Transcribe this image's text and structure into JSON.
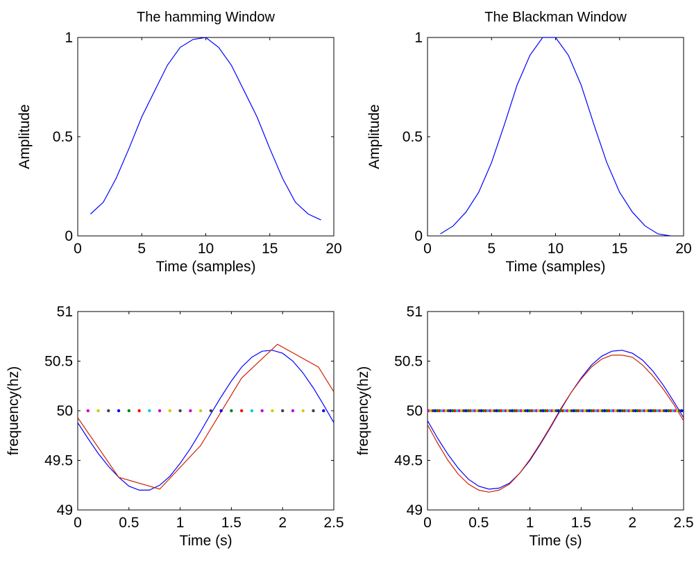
{
  "chart_data": [
    {
      "type": "line",
      "title": "The hamming Window",
      "xlabel": "Time (samples)",
      "ylabel": "Amplitude",
      "xlim": [
        0,
        20
      ],
      "ylim": [
        0,
        1
      ],
      "xticks": [
        0,
        5,
        10,
        15,
        20
      ],
      "yticks": [
        0,
        0.5,
        1
      ],
      "ytick_labels": [
        "0",
        "0.5",
        "1"
      ],
      "grid": false,
      "series": [
        {
          "color": "#0000ff",
          "x": [
            1,
            2,
            3,
            4,
            5,
            6,
            7,
            8,
            9,
            10,
            11,
            12,
            13,
            14,
            15,
            16,
            17,
            18,
            19
          ],
          "y": [
            0.11,
            0.17,
            0.29,
            0.44,
            0.6,
            0.73,
            0.86,
            0.95,
            0.99,
            1.0,
            0.95,
            0.86,
            0.73,
            0.6,
            0.44,
            0.29,
            0.17,
            0.11,
            0.08
          ]
        }
      ]
    },
    {
      "type": "line",
      "title": "The Blackman Window",
      "xlabel": "Time (samples)",
      "ylabel": "Amplitude",
      "xlim": [
        0,
        20
      ],
      "ylim": [
        0,
        1
      ],
      "xticks": [
        0,
        5,
        10,
        15,
        20
      ],
      "yticks": [
        0,
        0.5,
        1
      ],
      "ytick_labels": [
        "0",
        "0.5",
        "1"
      ],
      "grid": false,
      "series": [
        {
          "color": "#0000ff",
          "x": [
            1,
            2,
            3,
            4,
            5,
            6,
            7,
            8,
            9,
            10,
            11,
            12,
            13,
            14,
            15,
            16,
            17,
            18,
            19
          ],
          "y": [
            0.01,
            0.05,
            0.12,
            0.22,
            0.37,
            0.56,
            0.76,
            0.91,
            1.0,
            1.0,
            0.91,
            0.76,
            0.56,
            0.37,
            0.22,
            0.12,
            0.05,
            0.01,
            0.0
          ]
        }
      ]
    },
    {
      "type": "line",
      "title": "",
      "xlabel": "Time (s)",
      "ylabel": "frequency(hz)",
      "xlim": [
        0,
        2.5
      ],
      "ylim": [
        49,
        51
      ],
      "xticks": [
        0,
        0.5,
        1,
        1.5,
        2,
        2.5
      ],
      "yticks": [
        49,
        49.5,
        50,
        50.5,
        51
      ],
      "ytick_labels": [
        "49",
        "49.5",
        "50",
        "50.5",
        "51"
      ],
      "grid": false,
      "series": [
        {
          "color": "#0000ff",
          "x": [
            0,
            0.1,
            0.2,
            0.3,
            0.4,
            0.5,
            0.6,
            0.7,
            0.8,
            0.9,
            1.0,
            1.1,
            1.2,
            1.3,
            1.4,
            1.5,
            1.6,
            1.7,
            1.8,
            1.9,
            2.0,
            2.1,
            2.2,
            2.3,
            2.4,
            2.5
          ],
          "y": [
            49.88,
            49.72,
            49.57,
            49.44,
            49.33,
            49.24,
            49.2,
            49.2,
            49.25,
            49.34,
            49.47,
            49.62,
            49.79,
            49.97,
            50.14,
            50.3,
            50.44,
            50.54,
            50.6,
            50.61,
            50.58,
            50.5,
            50.38,
            50.23,
            50.06,
            49.88
          ]
        },
        {
          "color": "#cc2200",
          "x": [
            0,
            0.4,
            0.8,
            1.2,
            1.6,
            1.95,
            2.35,
            2.5
          ],
          "y": [
            49.93,
            49.33,
            49.21,
            49.65,
            50.33,
            50.67,
            50.44,
            50.19
          ]
        }
      ],
      "markers": {
        "y": 50,
        "x_start": 0.1,
        "x_step": 0.1,
        "count": 24,
        "colors": [
          "#cc00cc",
          "#cccc00",
          "#404040",
          "#0000ff",
          "#008000",
          "#ff0000",
          "#00cccc",
          "#cc00cc",
          "#cccc00",
          "#404040"
        ]
      }
    },
    {
      "type": "line",
      "title": "",
      "xlabel": "Time (s)",
      "ylabel": "frequency(hz)",
      "xlim": [
        0,
        2.5
      ],
      "ylim": [
        49,
        51
      ],
      "xticks": [
        0,
        0.5,
        1,
        1.5,
        2,
        2.5
      ],
      "yticks": [
        49,
        49.5,
        50,
        50.5,
        51
      ],
      "ytick_labels": [
        "49",
        "49.5",
        "50",
        "50.5",
        "51"
      ],
      "grid": false,
      "series": [
        {
          "color": "#0000ff",
          "x": [
            0,
            0.1,
            0.2,
            0.3,
            0.4,
            0.5,
            0.6,
            0.7,
            0.8,
            0.9,
            1.0,
            1.1,
            1.2,
            1.3,
            1.4,
            1.5,
            1.6,
            1.7,
            1.8,
            1.9,
            2.0,
            2.1,
            2.2,
            2.3,
            2.4,
            2.5
          ],
          "y": [
            49.9,
            49.72,
            49.56,
            49.42,
            49.31,
            49.24,
            49.21,
            49.22,
            49.27,
            49.37,
            49.5,
            49.66,
            49.83,
            50.01,
            50.18,
            50.33,
            50.46,
            50.55,
            50.6,
            50.61,
            50.58,
            50.51,
            50.4,
            50.26,
            50.1,
            49.93
          ]
        },
        {
          "color": "#cc2200",
          "x": [
            0,
            0.1,
            0.2,
            0.3,
            0.4,
            0.5,
            0.6,
            0.7,
            0.8,
            0.9,
            1.0,
            1.1,
            1.2,
            1.3,
            1.4,
            1.5,
            1.6,
            1.7,
            1.8,
            1.9,
            2.0,
            2.1,
            2.2,
            2.3,
            2.4,
            2.5
          ],
          "y": [
            49.86,
            49.67,
            49.5,
            49.36,
            49.26,
            49.2,
            49.18,
            49.2,
            49.26,
            49.37,
            49.51,
            49.67,
            49.84,
            50.02,
            50.18,
            50.32,
            50.44,
            50.52,
            50.56,
            50.56,
            50.54,
            50.46,
            50.35,
            50.22,
            50.07,
            49.9
          ]
        }
      ],
      "markers": {
        "y": 50,
        "x_start": 0.01,
        "x_step": 0.0215,
        "count": 116,
        "colors": [
          "#cc00cc",
          "#cccc00",
          "#404040",
          "#0000ff",
          "#008000",
          "#ff0000",
          "#00cccc"
        ]
      }
    }
  ]
}
